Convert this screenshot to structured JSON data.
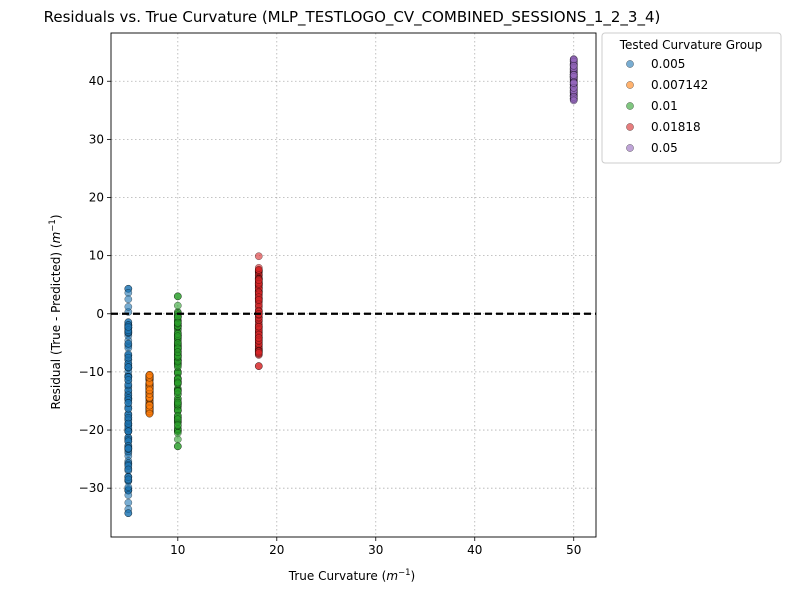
{
  "chart_data": {
    "type": "scatter",
    "title": "Residuals vs. True Curvature (MLP_TESTLOGO_CV_COMBINED_SESSIONS_1_2_3_4)",
    "xlabel_main": "True Curvature (",
    "xlabel_unit": "m",
    "xlabel_exp": "−1",
    "xlabel_close": ")",
    "ylabel_main": "Residual (True - Predicted) (",
    "ylabel_unit": "m",
    "ylabel_exp": "−1",
    "ylabel_close": ")",
    "xlim": [
      3.25,
      52.25
    ],
    "ylim": [
      -38.4,
      48.3
    ],
    "xticks": [
      10,
      20,
      30,
      40,
      50
    ],
    "yticks": [
      -30,
      -20,
      -10,
      0,
      10,
      20,
      30,
      40
    ],
    "xtick_labels": [
      "10",
      "20",
      "30",
      "40",
      "50"
    ],
    "ytick_labels": [
      "−30",
      "−20",
      "−10",
      "0",
      "10",
      "20",
      "30",
      "40"
    ],
    "grid": true,
    "reference_line_y": 0,
    "legend_title": "Tested Curvature Group",
    "legend_position": "outside-top-right",
    "series": [
      {
        "name": "0.005",
        "color": "#1f77b4",
        "x": 5,
        "y_min": -34.3,
        "y_max": 4.3,
        "outliers": [
          4.3,
          3.6,
          2.5,
          1.2,
          -28.5,
          -29.8,
          -31.2,
          -32.5,
          -33.6,
          -34.3
        ]
      },
      {
        "name": "0.007142",
        "color": "#ff7f0e",
        "x": 7.142,
        "y_min": -17.2,
        "y_max": -10.5,
        "outliers": []
      },
      {
        "name": "0.01",
        "color": "#2ca02c",
        "x": 10,
        "y_min": -22.8,
        "y_max": 3.0,
        "outliers": [
          3.0,
          1.4,
          -20.5,
          -21.6,
          -22.8
        ]
      },
      {
        "name": "0.01818",
        "color": "#d62728",
        "x": 18.18,
        "y_min": -9.0,
        "y_max": 9.9,
        "outliers": [
          -9.0
        ]
      },
      {
        "name": "0.05",
        "color": "#9467bd",
        "x": 50,
        "y_min": 36.7,
        "y_max": 43.8,
        "outliers": []
      }
    ]
  }
}
